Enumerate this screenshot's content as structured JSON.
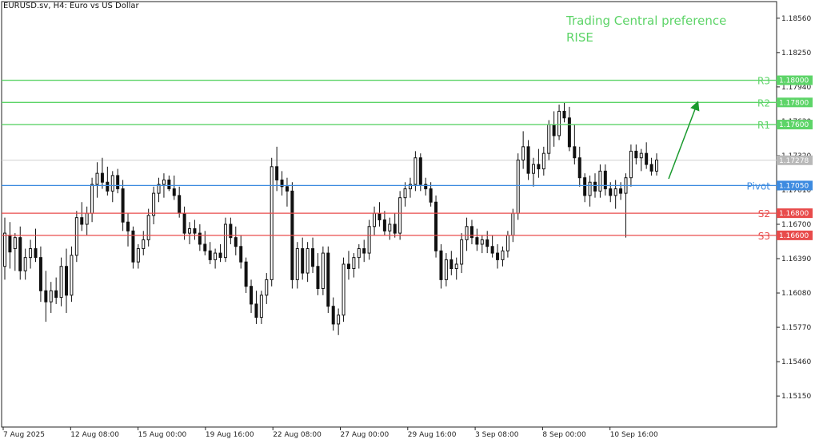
{
  "header": {
    "symbol_label": "EURUSD.sv, H4:  Euro vs US Dollar"
  },
  "annotation": {
    "line1": "Trading Central preference",
    "line2": "RISE"
  },
  "colors": {
    "resistance": "#5dd468",
    "pivot": "#3d8be0",
    "support": "#e84b4b",
    "last_price": "#b8b8b8",
    "arrow": "#1a9a2e",
    "candle": "#111111",
    "grid": "#d0d0d0"
  },
  "chart_data": {
    "type": "candlestick",
    "y_axis": {
      "range": [
        1.1487,
        1.1871
      ],
      "ticks": [
        "1.18560",
        "1.18250",
        "1.17940",
        "1.17630",
        "1.17320",
        "1.17010",
        "1.16700",
        "1.16390",
        "1.16080",
        "1.15770",
        "1.15460",
        "1.15150"
      ]
    },
    "x_axis": {
      "ticks": [
        "7 Aug 2025",
        "12 Aug 08:00",
        "15 Aug 00:00",
        "19 Aug 16:00",
        "22 Aug 08:00",
        "27 Aug 00:00",
        "29 Aug 16:00",
        "3 Sep 08:00",
        "8 Sep 00:00",
        "10 Sep 16:00"
      ]
    },
    "levels": [
      {
        "name": "R3",
        "price": "1.18000",
        "kind": "resistance"
      },
      {
        "name": "R2",
        "price": "1.17800",
        "kind": "resistance"
      },
      {
        "name": "R1",
        "price": "1.17600",
        "kind": "resistance"
      },
      {
        "name": "Pivot",
        "price": "1.17050",
        "kind": "pivot"
      },
      {
        "name": "S2",
        "price": "1.16800",
        "kind": "support"
      },
      {
        "name": "S3",
        "price": "1.16600",
        "kind": "support"
      }
    ],
    "last_price": "1.17278",
    "series": [
      {
        "o": 1.1632,
        "h": 1.1676,
        "l": 1.162,
        "c": 1.1662
      },
      {
        "o": 1.166,
        "h": 1.1672,
        "l": 1.163,
        "c": 1.1645
      },
      {
        "o": 1.1648,
        "h": 1.1662,
        "l": 1.1628,
        "c": 1.1658
      },
      {
        "o": 1.1658,
        "h": 1.1668,
        "l": 1.162,
        "c": 1.1628
      },
      {
        "o": 1.1628,
        "h": 1.1648,
        "l": 1.162,
        "c": 1.164
      },
      {
        "o": 1.164,
        "h": 1.1656,
        "l": 1.163,
        "c": 1.1648
      },
      {
        "o": 1.1648,
        "h": 1.1666,
        "l": 1.1636,
        "c": 1.164
      },
      {
        "o": 1.164,
        "h": 1.165,
        "l": 1.16,
        "c": 1.161
      },
      {
        "o": 1.161,
        "h": 1.1628,
        "l": 1.1582,
        "c": 1.16
      },
      {
        "o": 1.16,
        "h": 1.1618,
        "l": 1.159,
        "c": 1.161
      },
      {
        "o": 1.161,
        "h": 1.1622,
        "l": 1.1598,
        "c": 1.1604
      },
      {
        "o": 1.1604,
        "h": 1.164,
        "l": 1.1596,
        "c": 1.1632
      },
      {
        "o": 1.1632,
        "h": 1.1648,
        "l": 1.159,
        "c": 1.1606
      },
      {
        "o": 1.1606,
        "h": 1.165,
        "l": 1.16,
        "c": 1.1642
      },
      {
        "o": 1.1642,
        "h": 1.1682,
        "l": 1.1636,
        "c": 1.1676
      },
      {
        "o": 1.1676,
        "h": 1.169,
        "l": 1.1664,
        "c": 1.167
      },
      {
        "o": 1.167,
        "h": 1.1686,
        "l": 1.166,
        "c": 1.168
      },
      {
        "o": 1.168,
        "h": 1.1712,
        "l": 1.1672,
        "c": 1.1706
      },
      {
        "o": 1.1706,
        "h": 1.1726,
        "l": 1.1694,
        "c": 1.1716
      },
      {
        "o": 1.1716,
        "h": 1.173,
        "l": 1.1702,
        "c": 1.1708
      },
      {
        "o": 1.1708,
        "h": 1.1722,
        "l": 1.1696,
        "c": 1.17
      },
      {
        "o": 1.17,
        "h": 1.1718,
        "l": 1.169,
        "c": 1.1714
      },
      {
        "o": 1.1714,
        "h": 1.172,
        "l": 1.1698,
        "c": 1.1702
      },
      {
        "o": 1.1702,
        "h": 1.171,
        "l": 1.1664,
        "c": 1.1672
      },
      {
        "o": 1.1672,
        "h": 1.168,
        "l": 1.165,
        "c": 1.1664
      },
      {
        "o": 1.1664,
        "h": 1.1668,
        "l": 1.163,
        "c": 1.1636
      },
      {
        "o": 1.1636,
        "h": 1.1652,
        "l": 1.163,
        "c": 1.1648
      },
      {
        "o": 1.1648,
        "h": 1.1664,
        "l": 1.1642,
        "c": 1.1656
      },
      {
        "o": 1.1656,
        "h": 1.1684,
        "l": 1.165,
        "c": 1.1678
      },
      {
        "o": 1.1678,
        "h": 1.1704,
        "l": 1.167,
        "c": 1.1698
      },
      {
        "o": 1.1698,
        "h": 1.1712,
        "l": 1.169,
        "c": 1.1706
      },
      {
        "o": 1.1706,
        "h": 1.1716,
        "l": 1.1694,
        "c": 1.171
      },
      {
        "o": 1.171,
        "h": 1.1714,
        "l": 1.17,
        "c": 1.1702
      },
      {
        "o": 1.1702,
        "h": 1.1714,
        "l": 1.1692,
        "c": 1.1696
      },
      {
        "o": 1.1696,
        "h": 1.1704,
        "l": 1.1676,
        "c": 1.168
      },
      {
        "o": 1.168,
        "h": 1.1686,
        "l": 1.1656,
        "c": 1.1662
      },
      {
        "o": 1.1662,
        "h": 1.1672,
        "l": 1.1652,
        "c": 1.1666
      },
      {
        "o": 1.1666,
        "h": 1.1674,
        "l": 1.1656,
        "c": 1.1662
      },
      {
        "o": 1.1662,
        "h": 1.167,
        "l": 1.1646,
        "c": 1.1652
      },
      {
        "o": 1.1652,
        "h": 1.1664,
        "l": 1.1642,
        "c": 1.1646
      },
      {
        "o": 1.1646,
        "h": 1.1654,
        "l": 1.1634,
        "c": 1.1638
      },
      {
        "o": 1.1638,
        "h": 1.1648,
        "l": 1.163,
        "c": 1.1644
      },
      {
        "o": 1.1644,
        "h": 1.1652,
        "l": 1.1636,
        "c": 1.164
      },
      {
        "o": 1.164,
        "h": 1.1676,
        "l": 1.1636,
        "c": 1.167
      },
      {
        "o": 1.167,
        "h": 1.1676,
        "l": 1.1652,
        "c": 1.1658
      },
      {
        "o": 1.1658,
        "h": 1.1668,
        "l": 1.1642,
        "c": 1.165
      },
      {
        "o": 1.165,
        "h": 1.166,
        "l": 1.163,
        "c": 1.1636
      },
      {
        "o": 1.1636,
        "h": 1.164,
        "l": 1.1608,
        "c": 1.1614
      },
      {
        "o": 1.1614,
        "h": 1.162,
        "l": 1.159,
        "c": 1.1598
      },
      {
        "o": 1.1598,
        "h": 1.161,
        "l": 1.158,
        "c": 1.1586
      },
      {
        "o": 1.1586,
        "h": 1.161,
        "l": 1.158,
        "c": 1.1606
      },
      {
        "o": 1.1606,
        "h": 1.1626,
        "l": 1.1598,
        "c": 1.162
      },
      {
        "o": 1.162,
        "h": 1.173,
        "l": 1.1614,
        "c": 1.1722
      },
      {
        "o": 1.1722,
        "h": 1.174,
        "l": 1.17,
        "c": 1.171
      },
      {
        "o": 1.171,
        "h": 1.1718,
        "l": 1.1696,
        "c": 1.1704
      },
      {
        "o": 1.1704,
        "h": 1.1712,
        "l": 1.1686,
        "c": 1.17
      },
      {
        "o": 1.17,
        "h": 1.1708,
        "l": 1.1612,
        "c": 1.162
      },
      {
        "o": 1.162,
        "h": 1.1654,
        "l": 1.1612,
        "c": 1.1648
      },
      {
        "o": 1.1648,
        "h": 1.1658,
        "l": 1.162,
        "c": 1.1626
      },
      {
        "o": 1.1626,
        "h": 1.1654,
        "l": 1.1618,
        "c": 1.1648
      },
      {
        "o": 1.1648,
        "h": 1.1658,
        "l": 1.1626,
        "c": 1.1632
      },
      {
        "o": 1.1632,
        "h": 1.1644,
        "l": 1.1606,
        "c": 1.1612
      },
      {
        "o": 1.1612,
        "h": 1.165,
        "l": 1.1606,
        "c": 1.1644
      },
      {
        "o": 1.1644,
        "h": 1.165,
        "l": 1.159,
        "c": 1.1596
      },
      {
        "o": 1.1596,
        "h": 1.1604,
        "l": 1.1574,
        "c": 1.158
      },
      {
        "o": 1.158,
        "h": 1.1594,
        "l": 1.157,
        "c": 1.1588
      },
      {
        "o": 1.1588,
        "h": 1.164,
        "l": 1.1582,
        "c": 1.1634
      },
      {
        "o": 1.1634,
        "h": 1.1646,
        "l": 1.162,
        "c": 1.163
      },
      {
        "o": 1.163,
        "h": 1.1644,
        "l": 1.1622,
        "c": 1.164
      },
      {
        "o": 1.164,
        "h": 1.1652,
        "l": 1.163,
        "c": 1.1648
      },
      {
        "o": 1.1648,
        "h": 1.1656,
        "l": 1.1636,
        "c": 1.1644
      },
      {
        "o": 1.1644,
        "h": 1.1674,
        "l": 1.1638,
        "c": 1.1668
      },
      {
        "o": 1.1668,
        "h": 1.1686,
        "l": 1.166,
        "c": 1.168
      },
      {
        "o": 1.168,
        "h": 1.169,
        "l": 1.1668,
        "c": 1.1674
      },
      {
        "o": 1.1674,
        "h": 1.1682,
        "l": 1.166,
        "c": 1.1664
      },
      {
        "o": 1.1664,
        "h": 1.1676,
        "l": 1.1656,
        "c": 1.167
      },
      {
        "o": 1.167,
        "h": 1.168,
        "l": 1.1658,
        "c": 1.1662
      },
      {
        "o": 1.1662,
        "h": 1.17,
        "l": 1.1656,
        "c": 1.1694
      },
      {
        "o": 1.1694,
        "h": 1.1708,
        "l": 1.1686,
        "c": 1.1702
      },
      {
        "o": 1.1702,
        "h": 1.1712,
        "l": 1.1694,
        "c": 1.1706
      },
      {
        "o": 1.1706,
        "h": 1.1736,
        "l": 1.17,
        "c": 1.173
      },
      {
        "o": 1.173,
        "h": 1.1734,
        "l": 1.17,
        "c": 1.1706
      },
      {
        "o": 1.1706,
        "h": 1.1712,
        "l": 1.1696,
        "c": 1.1702
      },
      {
        "o": 1.1702,
        "h": 1.1708,
        "l": 1.1686,
        "c": 1.169
      },
      {
        "o": 1.169,
        "h": 1.1696,
        "l": 1.164,
        "c": 1.1646
      },
      {
        "o": 1.1646,
        "h": 1.1652,
        "l": 1.1612,
        "c": 1.162
      },
      {
        "o": 1.162,
        "h": 1.1644,
        "l": 1.1614,
        "c": 1.1638
      },
      {
        "o": 1.1638,
        "h": 1.1646,
        "l": 1.1624,
        "c": 1.163
      },
      {
        "o": 1.163,
        "h": 1.164,
        "l": 1.162,
        "c": 1.1634
      },
      {
        "o": 1.1634,
        "h": 1.1662,
        "l": 1.1626,
        "c": 1.1656
      },
      {
        "o": 1.1656,
        "h": 1.1676,
        "l": 1.1646,
        "c": 1.1668
      },
      {
        "o": 1.1668,
        "h": 1.1674,
        "l": 1.1652,
        "c": 1.1658
      },
      {
        "o": 1.1658,
        "h": 1.1666,
        "l": 1.1646,
        "c": 1.1652
      },
      {
        "o": 1.1652,
        "h": 1.166,
        "l": 1.1644,
        "c": 1.1656
      },
      {
        "o": 1.1656,
        "h": 1.1664,
        "l": 1.1644,
        "c": 1.165
      },
      {
        "o": 1.165,
        "h": 1.166,
        "l": 1.164,
        "c": 1.1644
      },
      {
        "o": 1.1644,
        "h": 1.1652,
        "l": 1.163,
        "c": 1.1638
      },
      {
        "o": 1.1638,
        "h": 1.165,
        "l": 1.1632,
        "c": 1.1646
      },
      {
        "o": 1.1646,
        "h": 1.1664,
        "l": 1.164,
        "c": 1.166
      },
      {
        "o": 1.166,
        "h": 1.1684,
        "l": 1.1654,
        "c": 1.168
      },
      {
        "o": 1.168,
        "h": 1.1734,
        "l": 1.1674,
        "c": 1.1728
      },
      {
        "o": 1.1728,
        "h": 1.1754,
        "l": 1.172,
        "c": 1.174
      },
      {
        "o": 1.174,
        "h": 1.1746,
        "l": 1.171,
        "c": 1.1716
      },
      {
        "o": 1.1716,
        "h": 1.173,
        "l": 1.1704,
        "c": 1.1724
      },
      {
        "o": 1.1724,
        "h": 1.1738,
        "l": 1.1712,
        "c": 1.172
      },
      {
        "o": 1.172,
        "h": 1.174,
        "l": 1.1714,
        "c": 1.1734
      },
      {
        "o": 1.1734,
        "h": 1.1764,
        "l": 1.1728,
        "c": 1.176
      },
      {
        "o": 1.176,
        "h": 1.1772,
        "l": 1.174,
        "c": 1.175
      },
      {
        "o": 1.175,
        "h": 1.1778,
        "l": 1.1746,
        "c": 1.1772
      },
      {
        "o": 1.1772,
        "h": 1.178,
        "l": 1.1762,
        "c": 1.1766
      },
      {
        "o": 1.1766,
        "h": 1.1776,
        "l": 1.1736,
        "c": 1.174
      },
      {
        "o": 1.174,
        "h": 1.176,
        "l": 1.1724,
        "c": 1.173
      },
      {
        "o": 1.173,
        "h": 1.174,
        "l": 1.1704,
        "c": 1.1712
      },
      {
        "o": 1.1712,
        "h": 1.1716,
        "l": 1.169,
        "c": 1.1696
      },
      {
        "o": 1.1696,
        "h": 1.1714,
        "l": 1.1686,
        "c": 1.1708
      },
      {
        "o": 1.1708,
        "h": 1.1716,
        "l": 1.1694,
        "c": 1.17
      },
      {
        "o": 1.17,
        "h": 1.1724,
        "l": 1.1694,
        "c": 1.1718
      },
      {
        "o": 1.1718,
        "h": 1.1724,
        "l": 1.1696,
        "c": 1.1702
      },
      {
        "o": 1.1702,
        "h": 1.1708,
        "l": 1.169,
        "c": 1.1696
      },
      {
        "o": 1.1696,
        "h": 1.171,
        "l": 1.1684,
        "c": 1.1702
      },
      {
        "o": 1.1702,
        "h": 1.1708,
        "l": 1.1692,
        "c": 1.1698
      },
      {
        "o": 1.1698,
        "h": 1.1716,
        "l": 1.1658,
        "c": 1.1712
      },
      {
        "o": 1.1712,
        "h": 1.1742,
        "l": 1.1704,
        "c": 1.1736
      },
      {
        "o": 1.1736,
        "h": 1.1742,
        "l": 1.1724,
        "c": 1.173
      },
      {
        "o": 1.173,
        "h": 1.1738,
        "l": 1.1718,
        "c": 1.1734
      },
      {
        "o": 1.1734,
        "h": 1.1744,
        "l": 1.172,
        "c": 1.1724
      },
      {
        "o": 1.1724,
        "h": 1.173,
        "l": 1.1714,
        "c": 1.1718
      },
      {
        "o": 1.1718,
        "h": 1.1734,
        "l": 1.1714,
        "c": 1.1728
      }
    ],
    "grid": false,
    "legend": "none"
  }
}
